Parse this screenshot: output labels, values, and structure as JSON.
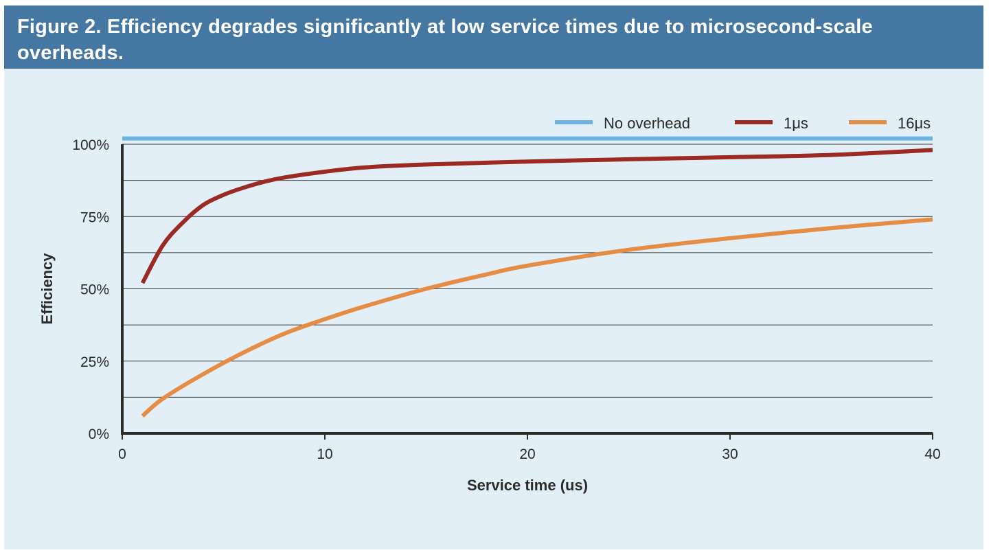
{
  "figure": {
    "title": "Figure 2. Efficiency degrades significantly at low service times due to microsecond-scale overheads."
  },
  "colors": {
    "header_bg": "#4577a3",
    "panel_bg": "#e2eff6",
    "no_overhead": "#6cb3e3",
    "overhead_1us": "#9a2a22",
    "overhead_16us": "#e58c45",
    "axis": "#2b2b2b"
  },
  "chart_data": {
    "type": "line",
    "title": "Figure 2. Efficiency degrades significantly at low service times due to microsecond-scale overheads.",
    "xlabel": "Service time (us)",
    "ylabel": "Efficiency",
    "xlim": [
      0,
      40
    ],
    "ylim": [
      0,
      100
    ],
    "xticks": [
      0,
      10,
      20,
      30,
      40
    ],
    "xtick_labels": [
      "0",
      "10",
      "20",
      "30",
      "40"
    ],
    "yticks": [
      0,
      25,
      50,
      75,
      100
    ],
    "ytick_labels": [
      "0%",
      "25%",
      "50%",
      "75%",
      "100%"
    ],
    "gridlines_y": [
      12.5,
      25,
      37.5,
      50,
      62.5,
      75,
      87.5,
      100
    ],
    "legend_position": "top-right",
    "series": [
      {
        "name": "No overhead",
        "color": "#6cb3e3",
        "x": [
          0,
          40
        ],
        "y": [
          102,
          102
        ]
      },
      {
        "name": "1μs",
        "color": "#9a2a22",
        "x": [
          1,
          2,
          3,
          4,
          5,
          6,
          7,
          8,
          10,
          12,
          15,
          20,
          25,
          30,
          35,
          40
        ],
        "y": [
          52,
          65,
          73,
          79,
          82.5,
          85,
          87,
          88.5,
          90.5,
          92,
          93,
          94,
          94.8,
          95.5,
          96.3,
          98
        ]
      },
      {
        "name": "16μs",
        "color": "#e58c45",
        "x": [
          1,
          2,
          4,
          6,
          8,
          10,
          12,
          15,
          18,
          20,
          25,
          30,
          35,
          40
        ],
        "y": [
          6,
          12,
          20.5,
          28,
          34.5,
          39.5,
          44,
          50,
          55,
          58,
          63.5,
          67.5,
          71,
          74
        ]
      }
    ]
  }
}
